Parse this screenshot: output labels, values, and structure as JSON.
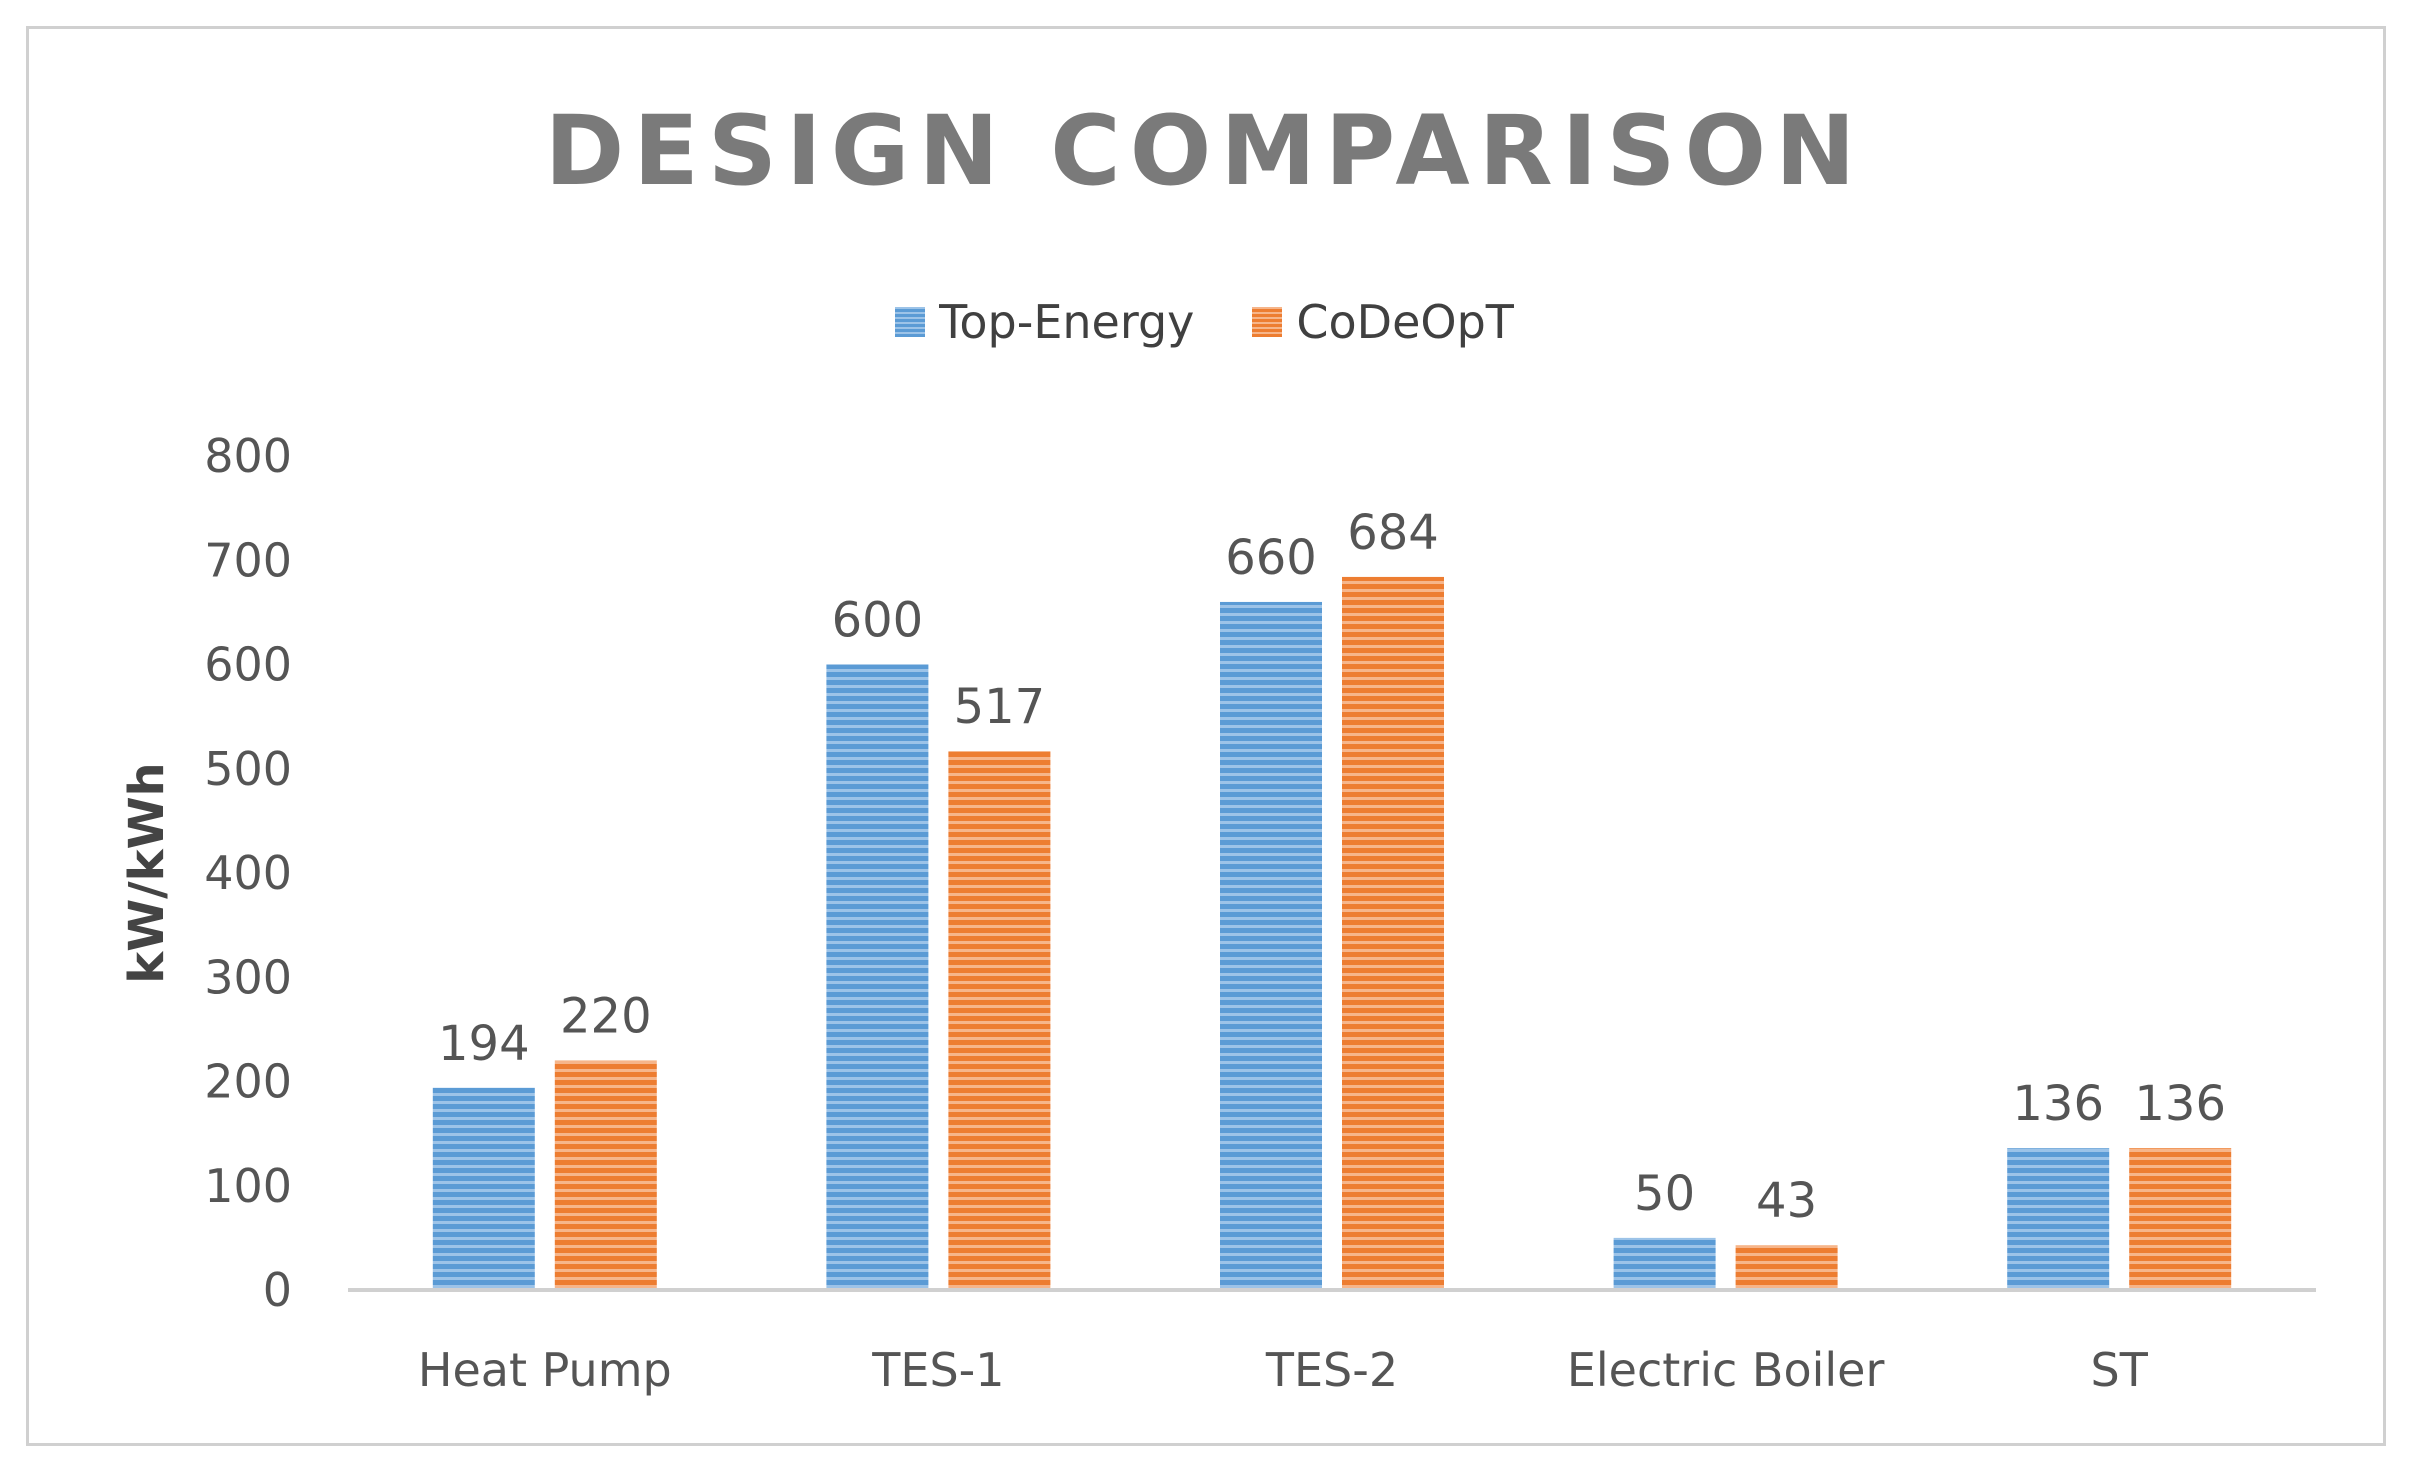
{
  "chart_data": {
    "type": "bar",
    "title": "DESIGN COMPARISON",
    "xlabel": "",
    "ylabel": "kW/kWh",
    "ylim": [
      0,
      800
    ],
    "yticks": [
      0,
      100,
      200,
      300,
      400,
      500,
      600,
      700,
      800
    ],
    "grid": false,
    "legend_position": "top",
    "categories": [
      "Heat Pump",
      "TES-1",
      "TES-2",
      "Electric Boiler",
      "ST"
    ],
    "series": [
      {
        "name": "Top-Energy",
        "color": "#5b9bd5",
        "values": [
          194,
          600,
          660,
          50,
          136
        ]
      },
      {
        "name": "CoDeOpT",
        "color": "#ed7d31",
        "values": [
          220,
          517,
          684,
          43,
          136
        ]
      }
    ]
  }
}
